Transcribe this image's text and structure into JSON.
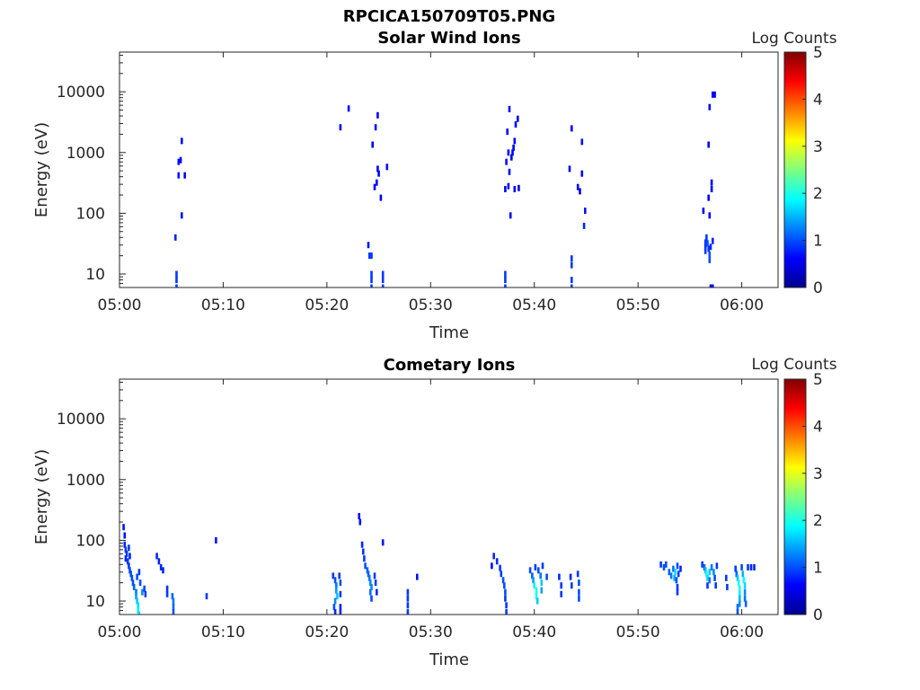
{
  "figure_title": "RPCICA150709T05.PNG",
  "colorbar": {
    "label": "Log Counts",
    "ticks": [
      "0",
      "1",
      "2",
      "3",
      "4",
      "5"
    ],
    "range": [
      0,
      5
    ],
    "colormap": "jet"
  },
  "chart_data": [
    {
      "type": "heatmap",
      "title": "Solar Wind Ions",
      "xlabel": "Time",
      "ylabel": "Energy (eV)",
      "x_range_minutes": [
        0,
        63.5
      ],
      "ylim": [
        6,
        45000
      ],
      "yscale": "log",
      "xtick_labels": [
        "05:00",
        "05:10",
        "05:20",
        "05:30",
        "05:40",
        "05:50",
        "06:00"
      ],
      "ytick_labels": [
        "10",
        "100",
        "1000",
        "10000"
      ],
      "cells": [
        [
          5.5,
          6,
          0.9
        ],
        [
          5.5,
          8,
          0.9
        ],
        [
          5.5,
          10,
          0.9
        ],
        [
          5.4,
          40,
          0.8
        ],
        [
          5.7,
          420,
          0.7
        ],
        [
          5.7,
          700,
          0.7
        ],
        [
          5.9,
          750,
          0.6
        ],
        [
          6.0,
          1550,
          0.6
        ],
        [
          6.0,
          92,
          0.7
        ],
        [
          6.3,
          420,
          0.6
        ],
        [
          21.3,
          2600,
          0.6
        ],
        [
          22.1,
          5300,
          0.6
        ],
        [
          24.0,
          30,
          0.7
        ],
        [
          24.1,
          20,
          0.9
        ],
        [
          24.3,
          20,
          0.9
        ],
        [
          24.3,
          6,
          0.9
        ],
        [
          24.3,
          8,
          0.9
        ],
        [
          24.3,
          10,
          0.9
        ],
        [
          24.4,
          1350,
          0.6
        ],
        [
          24.6,
          270,
          0.6
        ],
        [
          24.7,
          2600,
          0.7
        ],
        [
          24.8,
          320,
          0.6
        ],
        [
          24.9,
          4100,
          0.6
        ],
        [
          24.9,
          540,
          0.6
        ],
        [
          25.0,
          450,
          0.6
        ],
        [
          25.2,
          180,
          0.6
        ],
        [
          25.4,
          6,
          0.9
        ],
        [
          25.4,
          8,
          0.9
        ],
        [
          25.4,
          10,
          0.9
        ],
        [
          25.8,
          580,
          0.6
        ],
        [
          37.2,
          6,
          0.9
        ],
        [
          37.2,
          8,
          0.9
        ],
        [
          37.2,
          10,
          0.9
        ],
        [
          37.2,
          250,
          0.6
        ],
        [
          37.3,
          700,
          0.7
        ],
        [
          37.4,
          2200,
          0.6
        ],
        [
          37.5,
          280,
          0.6
        ],
        [
          37.5,
          1000,
          0.6
        ],
        [
          37.6,
          480,
          0.7
        ],
        [
          37.6,
          5200,
          0.6
        ],
        [
          37.7,
          92,
          0.6
        ],
        [
          37.8,
          830,
          0.6
        ],
        [
          37.9,
          1000,
          0.6
        ],
        [
          38.0,
          1200,
          0.6
        ],
        [
          38.1,
          1550,
          0.6
        ],
        [
          38.1,
          250,
          0.6
        ],
        [
          38.2,
          2900,
          0.6
        ],
        [
          38.4,
          3600,
          0.6
        ],
        [
          38.5,
          260,
          0.6
        ],
        [
          43.4,
          540,
          0.6
        ],
        [
          43.6,
          2500,
          0.6
        ],
        [
          43.6,
          14,
          0.9
        ],
        [
          43.6,
          18,
          0.9
        ],
        [
          43.6,
          6,
          0.9
        ],
        [
          43.6,
          8,
          0.9
        ],
        [
          44.2,
          270,
          0.6
        ],
        [
          44.4,
          230,
          0.6
        ],
        [
          44.6,
          1500,
          0.7
        ],
        [
          44.6,
          450,
          0.6
        ],
        [
          44.9,
          110,
          0.7
        ],
        [
          44.8,
          62,
          0.8
        ],
        [
          56.3,
          110,
          0.6
        ],
        [
          56.5,
          28,
          0.8
        ],
        [
          56.5,
          33,
          0.9
        ],
        [
          56.5,
          24,
          0.9
        ],
        [
          56.6,
          40,
          0.9
        ],
        [
          56.7,
          32,
          1.0
        ],
        [
          56.8,
          26,
          0.9
        ],
        [
          56.8,
          1350,
          0.6
        ],
        [
          56.8,
          180,
          0.6
        ],
        [
          56.9,
          5600,
          0.6
        ],
        [
          56.9,
          21,
          1.0
        ],
        [
          56.9,
          17,
          1.0
        ],
        [
          57.0,
          28,
          0.8
        ],
        [
          56.9,
          92,
          0.6
        ],
        [
          57.1,
          250,
          0.6
        ],
        [
          57.1,
          320,
          0.6
        ],
        [
          57.2,
          35,
          0.8
        ],
        [
          57.2,
          9000,
          0.6
        ],
        [
          57.4,
          9000,
          0.6
        ],
        [
          57.0,
          6,
          0.7
        ],
        [
          57.2,
          6,
          0.7
        ]
      ]
    },
    {
      "type": "heatmap",
      "title": "Cometary Ions",
      "xlabel": "Time",
      "ylabel": "Energy (eV)",
      "x_range_minutes": [
        0,
        63.5
      ],
      "ylim": [
        6,
        45000
      ],
      "yscale": "log",
      "xtick_labels": [
        "05:00",
        "05:10",
        "05:20",
        "05:30",
        "05:40",
        "05:50",
        "06:00"
      ],
      "ytick_labels": [
        "10",
        "100",
        "1000",
        "10000"
      ],
      "cells": [
        [
          0.4,
          165,
          0.7
        ],
        [
          0.5,
          120,
          0.7
        ],
        [
          0.5,
          85,
          0.8
        ],
        [
          0.6,
          70,
          0.9
        ],
        [
          0.7,
          60,
          0.9
        ],
        [
          0.6,
          50,
          0.8
        ],
        [
          0.8,
          45,
          0.9
        ],
        [
          0.9,
          38,
          0.9
        ],
        [
          1.0,
          32,
          1.0
        ],
        [
          1.1,
          28,
          1.0
        ],
        [
          0.9,
          75,
          0.9
        ],
        [
          1.0,
          55,
          0.8
        ],
        [
          1.2,
          24,
          1.0
        ],
        [
          1.3,
          20,
          1.0
        ],
        [
          1.4,
          17,
          1.1
        ],
        [
          1.6,
          14,
          1.2
        ],
        [
          1.6,
          12,
          1.4
        ],
        [
          1.7,
          10,
          1.6
        ],
        [
          1.8,
          8.5,
          1.7
        ],
        [
          1.8,
          7,
          1.8
        ],
        [
          1.9,
          6,
          1.7
        ],
        [
          1.7,
          25,
          1.0
        ],
        [
          1.9,
          30,
          0.9
        ],
        [
          2.0,
          20,
          1.0
        ],
        [
          2.2,
          14,
          1.3
        ],
        [
          2.4,
          16,
          1.0
        ],
        [
          2.5,
          13,
          0.9
        ],
        [
          3.6,
          55,
          0.8
        ],
        [
          3.8,
          45,
          0.8
        ],
        [
          4.0,
          36,
          0.8
        ],
        [
          4.2,
          32,
          0.8
        ],
        [
          4.6,
          16,
          0.9
        ],
        [
          4.6,
          13,
          0.9
        ],
        [
          5.1,
          12,
          1.1
        ],
        [
          5.2,
          10,
          1.2
        ],
        [
          5.2,
          8,
          1.1
        ],
        [
          5.2,
          6.5,
          1.0
        ],
        [
          8.4,
          12,
          0.9
        ],
        [
          9.3,
          100,
          0.7
        ],
        [
          20.6,
          26,
          0.9
        ],
        [
          20.8,
          22,
          1.0
        ],
        [
          20.9,
          18,
          1.2
        ],
        [
          20.9,
          15,
          1.4
        ],
        [
          21.0,
          12,
          1.6
        ],
        [
          20.8,
          10,
          1.3
        ],
        [
          20.7,
          8,
          1.0
        ],
        [
          20.8,
          6.5,
          0.8
        ],
        [
          21.2,
          26,
          0.9
        ],
        [
          21.3,
          20,
          1.0
        ],
        [
          21.3,
          13,
          0.9
        ],
        [
          21.3,
          8,
          0.8
        ],
        [
          21.3,
          6.5,
          0.8
        ],
        [
          23.1,
          250,
          0.7
        ],
        [
          23.2,
          200,
          0.7
        ],
        [
          23.4,
          85,
          0.8
        ],
        [
          23.5,
          65,
          0.9
        ],
        [
          23.6,
          50,
          0.9
        ],
        [
          23.7,
          38,
          1.0
        ],
        [
          23.9,
          32,
          1.1
        ],
        [
          24.0,
          28,
          1.1
        ],
        [
          24.1,
          24,
          1.2
        ],
        [
          24.2,
          20,
          1.3
        ],
        [
          24.3,
          17,
          1.3
        ],
        [
          24.2,
          14,
          1.2
        ],
        [
          24.3,
          11,
          1.0
        ],
        [
          24.6,
          26,
          0.9
        ],
        [
          24.7,
          20,
          0.9
        ],
        [
          24.8,
          14,
          0.8
        ],
        [
          25.4,
          92,
          0.7
        ],
        [
          27.8,
          14,
          0.9
        ],
        [
          27.8,
          11,
          0.9
        ],
        [
          27.8,
          8.5,
          0.9
        ],
        [
          27.8,
          6.5,
          0.9
        ],
        [
          28.7,
          25,
          0.7
        ],
        [
          35.9,
          38,
          0.7
        ],
        [
          36.1,
          55,
          0.8
        ],
        [
          36.4,
          45,
          0.8
        ],
        [
          36.7,
          35,
          0.9
        ],
        [
          36.8,
          28,
          0.9
        ],
        [
          37.0,
          22,
          1.0
        ],
        [
          37.1,
          18,
          1.0
        ],
        [
          37.2,
          14,
          1.0
        ],
        [
          37.2,
          11,
          0.9
        ],
        [
          37.3,
          8.5,
          0.9
        ],
        [
          37.3,
          6.5,
          0.9
        ],
        [
          39.6,
          32,
          1.0
        ],
        [
          39.8,
          26,
          1.1
        ],
        [
          39.9,
          22,
          1.4
        ],
        [
          40.0,
          18,
          1.8
        ],
        [
          40.2,
          15,
          2.0
        ],
        [
          40.2,
          12,
          1.9
        ],
        [
          40.3,
          10,
          1.6
        ],
        [
          40.1,
          36,
          0.9
        ],
        [
          40.4,
          32,
          1.0
        ],
        [
          40.6,
          26,
          1.2
        ],
        [
          40.7,
          20,
          1.6
        ],
        [
          40.7,
          15,
          1.4
        ],
        [
          40.8,
          38,
          0.9
        ],
        [
          41.2,
          25,
          1.0
        ],
        [
          42.4,
          25,
          0.8
        ],
        [
          42.6,
          18,
          0.9
        ],
        [
          42.6,
          13,
          0.9
        ],
        [
          43.5,
          25,
          0.8
        ],
        [
          43.6,
          18,
          0.9
        ],
        [
          44.2,
          28,
          0.9
        ],
        [
          44.3,
          20,
          1.0
        ],
        [
          44.3,
          14,
          1.0
        ],
        [
          44.3,
          11,
          1.0
        ],
        [
          52.2,
          40,
          0.9
        ],
        [
          52.5,
          36,
          1.0
        ],
        [
          52.7,
          40,
          1.0
        ],
        [
          53.0,
          30,
          1.1
        ],
        [
          53.2,
          26,
          1.2
        ],
        [
          53.4,
          34,
          1.2
        ],
        [
          53.5,
          24,
          1.5
        ],
        [
          53.6,
          30,
          1.7
        ],
        [
          53.7,
          22,
          1.0
        ],
        [
          53.8,
          38,
          1.0
        ],
        [
          53.8,
          17,
          0.9
        ],
        [
          53.8,
          14,
          0.9
        ],
        [
          53.9,
          28,
          0.9
        ],
        [
          54.1,
          34,
          0.8
        ],
        [
          56.2,
          40,
          0.9
        ],
        [
          56.4,
          36,
          1.1
        ],
        [
          56.5,
          32,
          1.5
        ],
        [
          56.6,
          28,
          1.9
        ],
        [
          56.7,
          24,
          1.7
        ],
        [
          56.9,
          30,
          1.6
        ],
        [
          56.9,
          22,
          1.2
        ],
        [
          56.7,
          18,
          0.9
        ],
        [
          57.1,
          36,
          1.2
        ],
        [
          57.3,
          30,
          1.3
        ],
        [
          57.4,
          24,
          1.0
        ],
        [
          57.5,
          18,
          0.9
        ],
        [
          57.6,
          38,
          0.9
        ],
        [
          58.5,
          24,
          0.9
        ],
        [
          58.6,
          17,
          0.9
        ],
        [
          59.4,
          34,
          0.9
        ],
        [
          59.5,
          28,
          1.1
        ],
        [
          59.6,
          24,
          1.6
        ],
        [
          59.7,
          20,
          1.9
        ],
        [
          59.8,
          16,
          2.0
        ],
        [
          59.8,
          13,
          1.8
        ],
        [
          59.8,
          11,
          1.5
        ],
        [
          59.8,
          9,
          1.3
        ],
        [
          60.0,
          36,
          1.0
        ],
        [
          60.1,
          28,
          1.5
        ],
        [
          60.2,
          22,
          1.9
        ],
        [
          60.3,
          18,
          1.7
        ],
        [
          60.3,
          14,
          1.3
        ],
        [
          60.3,
          11,
          1.2
        ],
        [
          60.4,
          9,
          1.1
        ],
        [
          60.6,
          36,
          0.9
        ],
        [
          60.9,
          36,
          0.8
        ],
        [
          61.2,
          36,
          0.8
        ],
        [
          59.6,
          8,
          1.2
        ],
        [
          59.6,
          6.5,
          1.0
        ]
      ]
    }
  ]
}
